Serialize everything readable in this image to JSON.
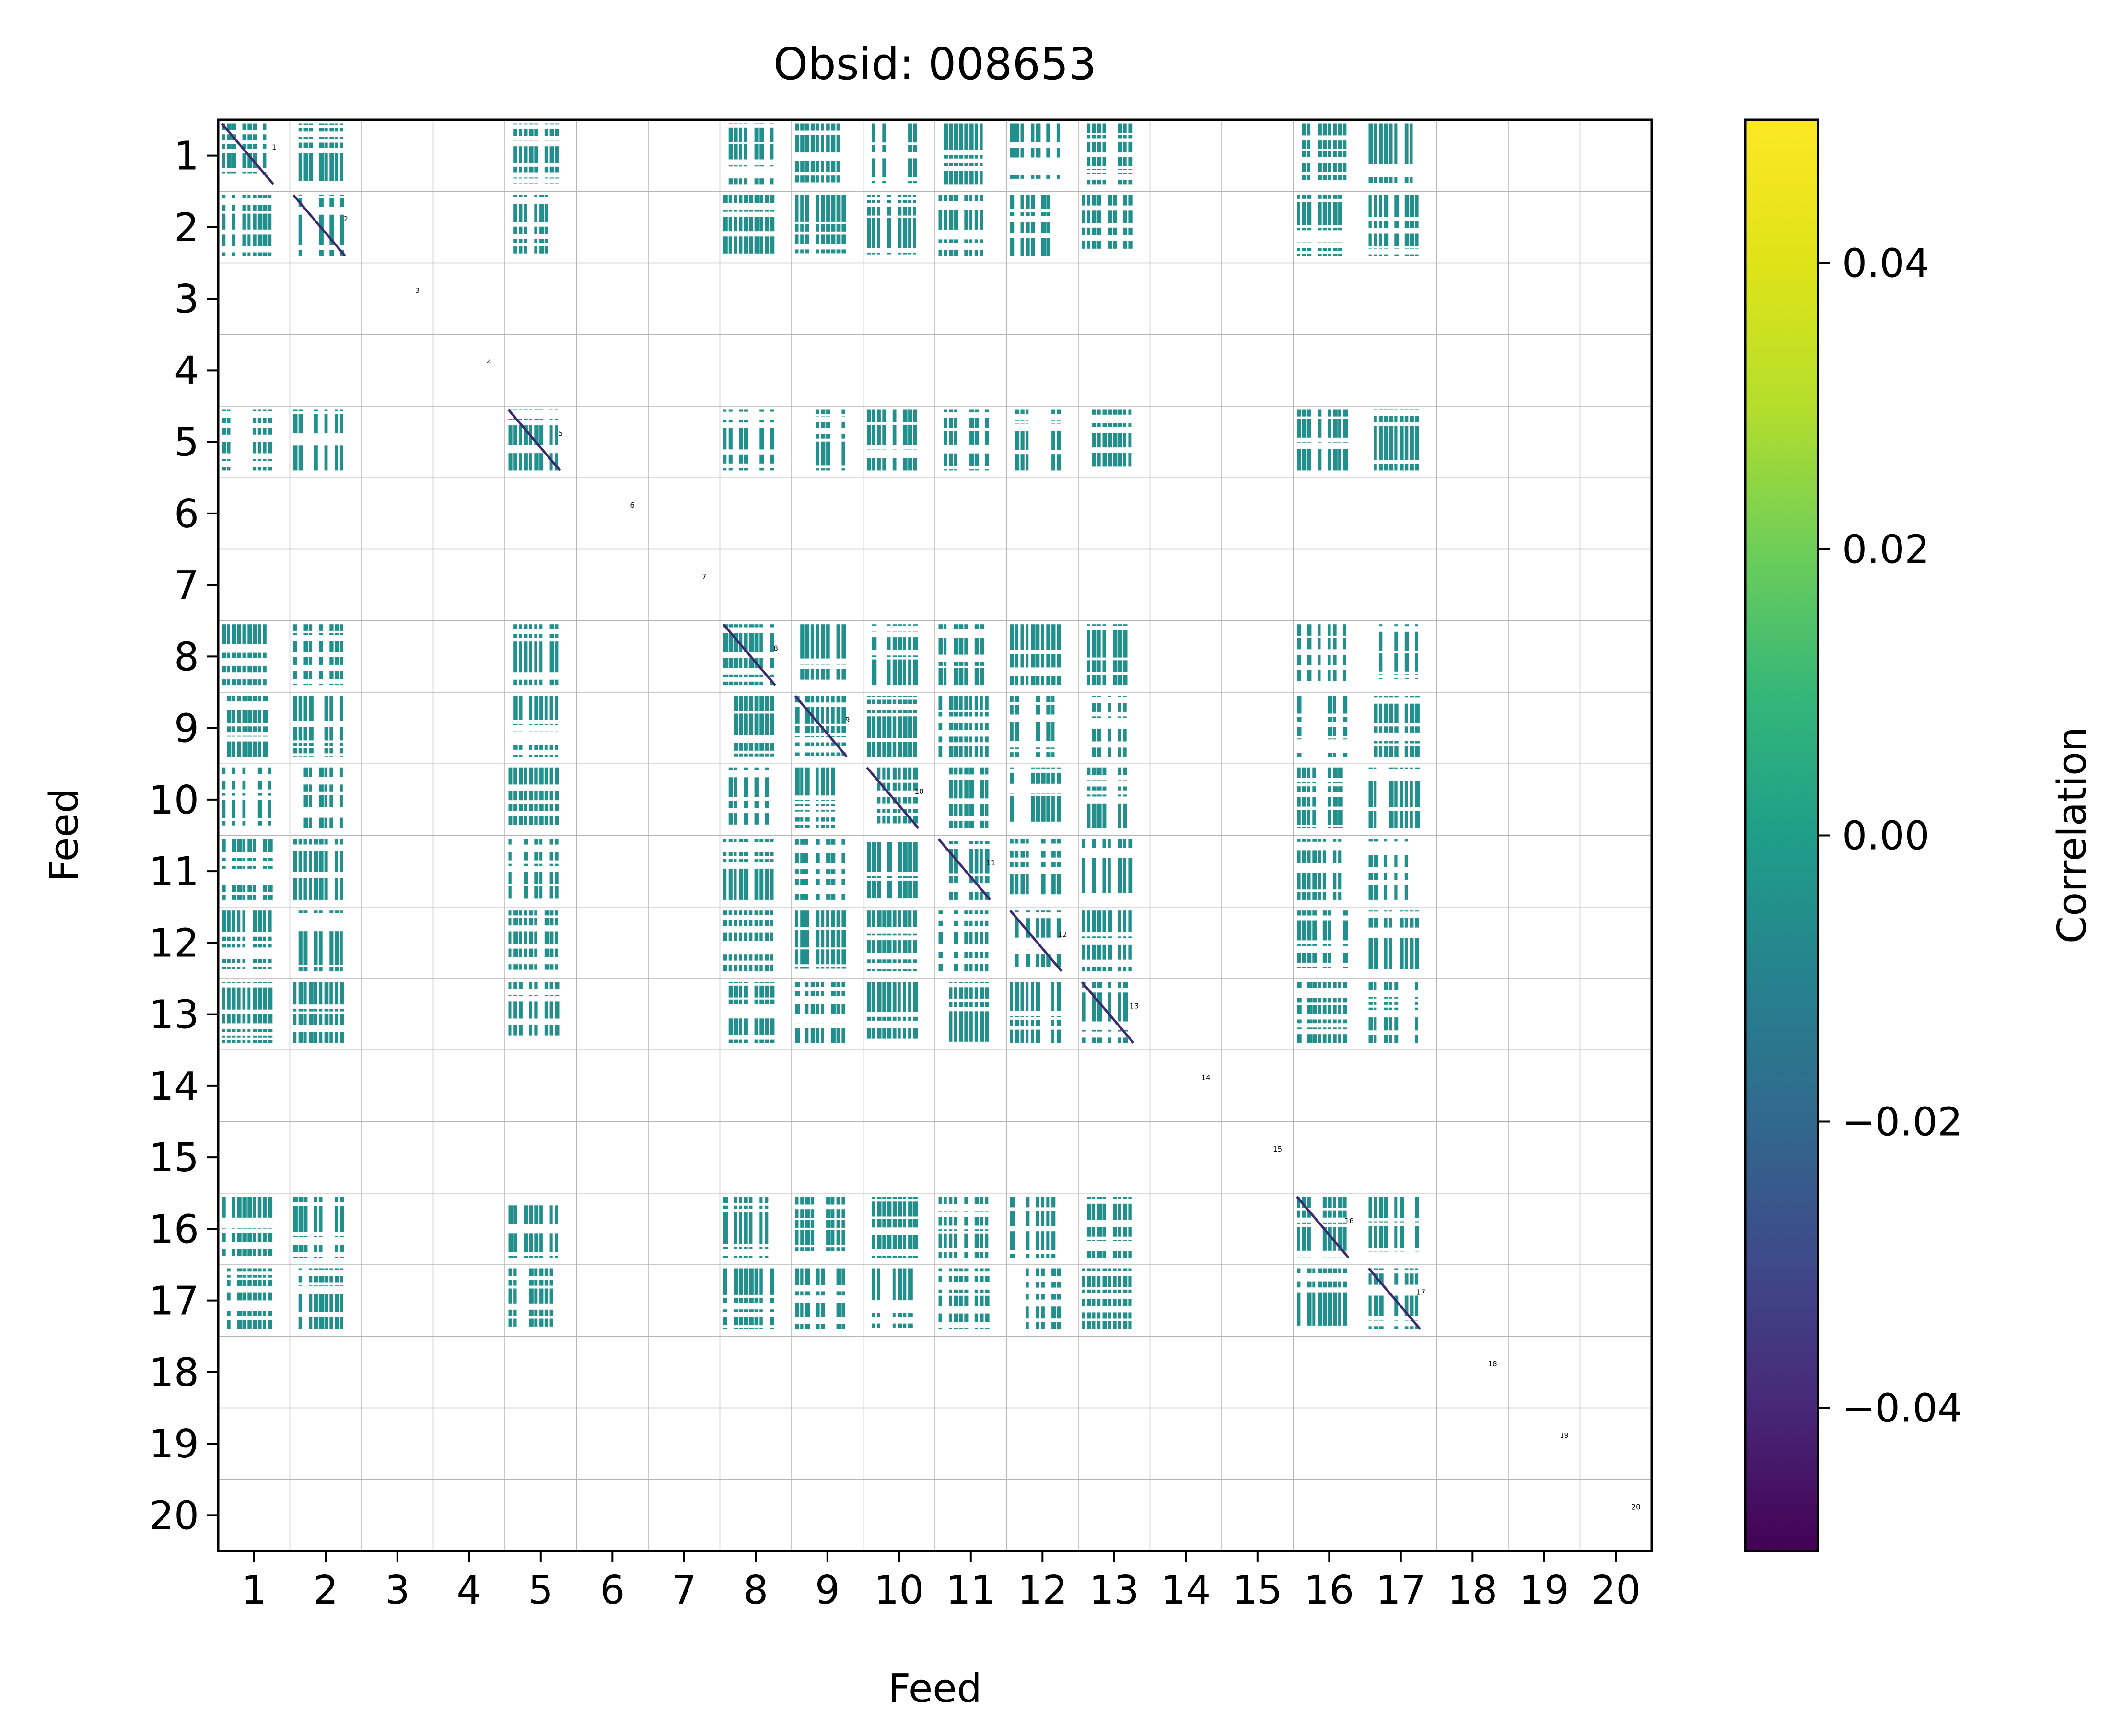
{
  "chart_data": {
    "type": "heatmap",
    "title": "Obsid: 008653",
    "xlabel": "Feed",
    "ylabel": "Feed",
    "categories": [
      "1",
      "2",
      "3",
      "4",
      "5",
      "6",
      "7",
      "8",
      "9",
      "10",
      "11",
      "12",
      "13",
      "14",
      "15",
      "16",
      "17",
      "18",
      "19",
      "20"
    ],
    "diagonal_labels": [
      "1",
      "2",
      "3",
      "4",
      "5",
      "6",
      "7",
      "8",
      "9",
      "10",
      "11",
      "12",
      "13",
      "14",
      "15",
      "16",
      "17",
      "18",
      "19",
      "20"
    ],
    "active_feeds": [
      1,
      2,
      5,
      8,
      9,
      10,
      11,
      12,
      13,
      16,
      17
    ],
    "cell_value_dominant": 0.0,
    "colorbar": {
      "label": "Correlation",
      "vmin": -0.05,
      "vmax": 0.05,
      "ticks": [
        "−0.04",
        "−0.02",
        "0.00",
        "0.02",
        "0.04"
      ],
      "tick_values": [
        -0.04,
        -0.02,
        0.0,
        0.02,
        0.04
      ],
      "colormap": "viridis",
      "colors": [
        "#440154",
        "#3b528b",
        "#21918c",
        "#5ec962",
        "#fde725"
      ]
    },
    "grid": true,
    "colors": {
      "fill": "#21908d",
      "diagonal": "#3b2a6e",
      "grid": "#b5b5b5"
    }
  }
}
